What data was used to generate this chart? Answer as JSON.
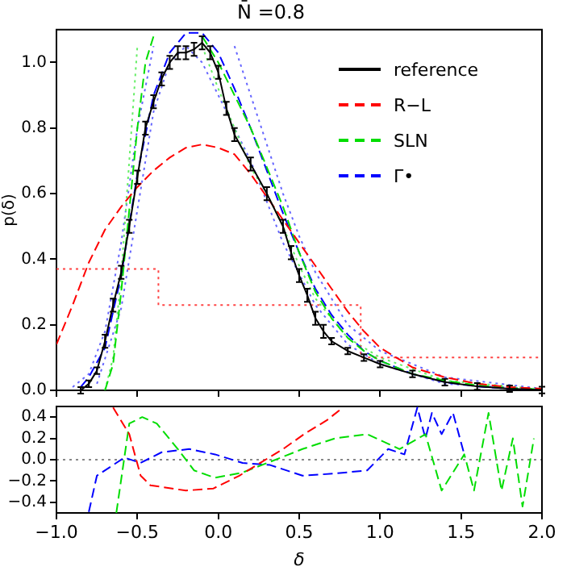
{
  "chart_data": [
    {
      "type": "line",
      "title": "N̄ =0.8",
      "ylabel": "p(δ)",
      "xlim": [
        -1,
        2
      ],
      "ylim": [
        0,
        1.1
      ],
      "xticks": [
        {
          "value": -1,
          "label": null
        },
        {
          "value": -0.5,
          "label": null
        },
        {
          "value": 0,
          "label": null
        },
        {
          "value": 0.5,
          "label": null
        },
        {
          "value": 1,
          "label": null
        },
        {
          "value": 1.5,
          "label": null
        },
        {
          "value": 2,
          "label": null
        }
      ],
      "yticks": [
        {
          "value": 0,
          "label": "0.0"
        },
        {
          "value": 0.2,
          "label": "0.2"
        },
        {
          "value": 0.4,
          "label": "0.4"
        },
        {
          "value": 0.6,
          "label": "0.6"
        },
        {
          "value": 0.8,
          "label": "0.8"
        },
        {
          "value": 1,
          "label": "1.0"
        }
      ],
      "tick_labels": "y",
      "grid": false,
      "legend": "top right",
      "marker": "none",
      "series": [
        {
          "name": "reference",
          "color": "#000000",
          "line_style": "solid",
          "x": [
            -0.85,
            -0.8,
            -0.75,
            -0.7,
            -0.65,
            -0.6,
            -0.55,
            -0.5,
            -0.45,
            -0.4,
            -0.35,
            -0.3,
            -0.25,
            -0.2,
            -0.15,
            -0.1,
            -0.05,
            0,
            0.05,
            0.1,
            0.2,
            0.3,
            0.4,
            0.45,
            0.5,
            0.55,
            0.6,
            0.65,
            0.7,
            0.8,
            0.9,
            1.0,
            1.2,
            1.4,
            1.6,
            1.8,
            2.0
          ],
          "values": [
            0,
            0.02,
            0.06,
            0.15,
            0.26,
            0.36,
            0.5,
            0.65,
            0.8,
            0.88,
            0.95,
            1.0,
            1.03,
            1.03,
            1.04,
            1.06,
            1.03,
            0.97,
            0.86,
            0.78,
            0.69,
            0.6,
            0.5,
            0.42,
            0.35,
            0.29,
            0.22,
            0.18,
            0.15,
            0.12,
            0.1,
            0.08,
            0.05,
            0.025,
            0.012,
            0.005,
            0.001
          ],
          "errors": [
            0.01,
            0.01,
            0.01,
            0.02,
            0.02,
            0.02,
            0.02,
            0.02,
            0.02,
            0.02,
            0.02,
            0.02,
            0.02,
            0.02,
            0.02,
            0.02,
            0.02,
            0.02,
            0.02,
            0.02,
            0.02,
            0.02,
            0.02,
            0.02,
            0.02,
            0.02,
            0.02,
            0.02,
            0.01,
            0.01,
            0.01,
            0.01,
            0.01,
            0.01,
            0.01,
            0.01,
            0.01
          ]
        },
        {
          "name": "R−L",
          "color": "#ff0000",
          "line_style": "dashed",
          "x": [
            -1,
            -0.9,
            -0.8,
            -0.7,
            -0.6,
            -0.5,
            -0.4,
            -0.3,
            -0.2,
            -0.1,
            0,
            0.1,
            0.2,
            0.3,
            0.4,
            0.5,
            0.6,
            0.7,
            0.8,
            0.9,
            1.0,
            1.1,
            1.2,
            1.4,
            1.6,
            1.8,
            2.0
          ],
          "values": [
            0.14,
            0.26,
            0.39,
            0.49,
            0.56,
            0.62,
            0.67,
            0.71,
            0.74,
            0.75,
            0.74,
            0.72,
            0.66,
            0.59,
            0.52,
            0.45,
            0.38,
            0.31,
            0.24,
            0.18,
            0.13,
            0.1,
            0.07,
            0.04,
            0.02,
            0.01,
            0.005
          ]
        },
        {
          "name": "SLN",
          "color": "#00dd00",
          "line_style": "dashed",
          "x": [
            -0.7,
            -0.65,
            -0.6,
            -0.55,
            -0.5,
            -0.45,
            -0.4,
            -0.3,
            -0.2,
            -0.1,
            0,
            0.1,
            0.2,
            0.3,
            0.4,
            0.5,
            0.6,
            0.7,
            0.8,
            0.9,
            1.0,
            1.2,
            1.4,
            1.6,
            1.8,
            2.0
          ],
          "values": [
            0,
            0.08,
            0.3,
            0.55,
            0.8,
            1.0,
            1.08,
            null,
            null,
            1.08,
            1.0,
            0.9,
            0.8,
            0.68,
            0.56,
            0.42,
            0.3,
            0.22,
            0.16,
            0.12,
            0.09,
            0.05,
            0.03,
            0.015,
            0.007,
            0.003
          ]
        },
        {
          "name": "Γ•",
          "color": "#0000ff",
          "line_style": "dashed",
          "x": [
            -0.85,
            -0.8,
            -0.7,
            -0.6,
            -0.5,
            -0.4,
            -0.3,
            -0.2,
            -0.1,
            0,
            0.1,
            0.2,
            0.3,
            0.4,
            0.5,
            0.6,
            0.7,
            0.8,
            0.9,
            1.0,
            1.2,
            1.4,
            1.6,
            1.8,
            2.0
          ],
          "values": [
            0.01,
            0.04,
            0.13,
            0.35,
            0.66,
            0.9,
            1.03,
            1.09,
            1.09,
            1.03,
            0.92,
            0.8,
            0.67,
            0.54,
            0.42,
            0.31,
            0.23,
            0.17,
            0.12,
            0.09,
            0.05,
            0.025,
            0.012,
            0.005,
            0.002
          ]
        },
        {
          "type": "step",
          "color": "#ff4444",
          "line_style": "dotted",
          "x": [
            -1,
            -0.37,
            0.88,
            2
          ],
          "values": [
            0.37,
            0.26,
            0.1,
            0.1
          ]
        },
        {
          "color": "#66ee66",
          "line_style": "dotted",
          "x": [
            -0.7,
            -0.65,
            -0.6,
            -0.55,
            -0.5,
            -0.4,
            -0.1,
            0,
            0.1,
            0.2,
            0.3,
            0.4,
            0.5,
            0.6,
            0.8,
            1.0,
            1.4,
            2.0
          ],
          "values": [
            0,
            0.1,
            0.35,
            0.7,
            1.05,
            null,
            1.05,
            0.92,
            0.8,
            0.68,
            0.6,
            0.5,
            0.38,
            0.28,
            0.16,
            0.1,
            0.03,
            0.003
          ]
        },
        {
          "color": "#6666ff",
          "line_style": "dotted",
          "x": [
            -0.9,
            -0.8,
            -0.7,
            -0.6,
            -0.5,
            -0.4,
            0,
            0.1,
            0.2,
            0.3,
            0.4,
            0.5,
            0.6,
            0.8,
            1.0,
            1.4,
            2.0
          ],
          "values": [
            0.01,
            0.05,
            0.18,
            0.45,
            0.8,
            1.05,
            null,
            1.05,
            0.9,
            0.75,
            0.6,
            0.47,
            0.36,
            0.2,
            0.12,
            0.04,
            0.005
          ]
        },
        {
          "color": "#6666ff",
          "line_style": "dotted",
          "x": [
            -0.75,
            -0.6,
            -0.5,
            -0.4,
            -0.3,
            -0.2,
            -0.1,
            0,
            0.2,
            0.4,
            0.6,
            0.8,
            1.0,
            1.4,
            2.0
          ],
          "values": [
            0.02,
            0.25,
            0.55,
            0.85,
            1.0,
            1.05,
            1.0,
            0.9,
            0.7,
            0.45,
            0.26,
            0.14,
            0.08,
            0.02,
            0.002
          ]
        }
      ]
    },
    {
      "type": "line",
      "xlabel": "δ",
      "xlim": [
        -1,
        2
      ],
      "ylim": [
        -0.5,
        0.5
      ],
      "xticks": [
        {
          "value": -1,
          "label": "−1.0"
        },
        {
          "value": -0.5,
          "label": "−0.5"
        },
        {
          "value": 0,
          "label": "0.0"
        },
        {
          "value": 0.5,
          "label": "0.5"
        },
        {
          "value": 1,
          "label": "1.0"
        },
        {
          "value": 1.5,
          "label": "1.5"
        },
        {
          "value": 2,
          "label": "2.0"
        }
      ],
      "yticks": [
        {
          "value": -0.4,
          "label": "−0.4"
        },
        {
          "value": -0.2,
          "label": "−0.2"
        },
        {
          "value": 0,
          "label": "0.0"
        },
        {
          "value": 0.2,
          "label": "0.2"
        },
        {
          "value": 0.4,
          "label": "0.4"
        }
      ],
      "grid": false,
      "marker": "none",
      "ref_lines": [
        {
          "axis": "y",
          "value": 0,
          "color": "#888888",
          "line_style": "dotted"
        }
      ],
      "series": [
        {
          "color": "#ff0000",
          "line_style": "dashed",
          "x": [
            -0.65,
            -0.55,
            -0.48,
            -0.42,
            -0.2,
            -0.03,
            0.13,
            0.27,
            0.4,
            0.53,
            0.67,
            0.77
          ],
          "values": [
            0.49,
            0.24,
            -0.15,
            -0.24,
            -0.29,
            -0.27,
            -0.15,
            -0.02,
            0.1,
            0.24,
            0.37,
            0.49
          ]
        },
        {
          "color": "#00dd00",
          "line_style": "dashed",
          "x": [
            -0.63,
            -0.55,
            -0.47,
            -0.38,
            -0.25,
            -0.15,
            -0.02,
            0.15,
            0.32,
            0.52,
            0.72,
            0.92,
            1.12,
            1.28,
            1.38,
            1.52,
            1.58,
            1.67,
            1.75,
            1.82,
            1.88,
            1.95
          ],
          "values": [
            -0.5,
            0.34,
            0.4,
            0.34,
            0.1,
            -0.1,
            -0.17,
            -0.12,
            -0.02,
            0.1,
            0.2,
            0.24,
            0.1,
            0.24,
            -0.29,
            0.05,
            -0.29,
            0.44,
            -0.29,
            0.2,
            -0.44,
            0.2
          ]
        },
        {
          "color": "#0000ff",
          "line_style": "dashed",
          "x": [
            -0.8,
            -0.75,
            -0.65,
            -0.58,
            -0.48,
            -0.35,
            -0.18,
            -0.02,
            0.15,
            0.32,
            0.52,
            0.72,
            0.92,
            1.05,
            1.15,
            1.23,
            1.28,
            1.32,
            1.38,
            1.45,
            1.52
          ],
          "values": [
            -0.49,
            -0.15,
            -0.05,
            0.02,
            -0.03,
            0.07,
            0.1,
            0.05,
            -0.03,
            -0.05,
            -0.15,
            -0.13,
            -0.1,
            0.1,
            0.05,
            0.49,
            0.2,
            0.44,
            0.24,
            0.44,
            0.05
          ]
        }
      ]
    }
  ]
}
